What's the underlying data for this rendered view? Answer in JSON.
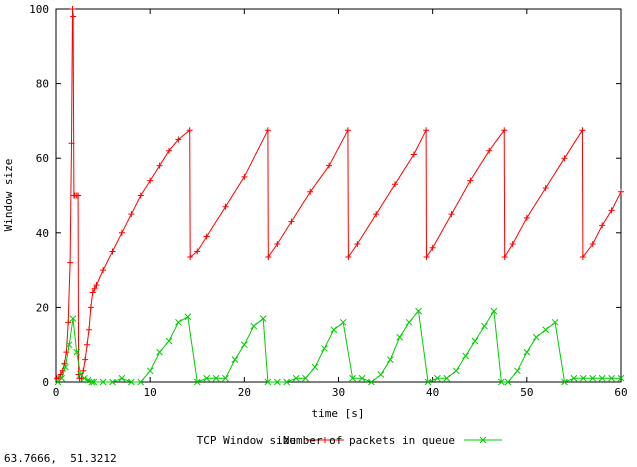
{
  "status_bar": {
    "coordinates": "63.7666,  51.3212"
  },
  "chart_data": {
    "type": "line",
    "xlabel": "time [s]",
    "ylabel": "Window size",
    "xlim": [
      0,
      60
    ],
    "ylim": [
      0,
      100
    ],
    "xticks": [
      0,
      10,
      20,
      30,
      40,
      50,
      60
    ],
    "yticks": [
      0,
      20,
      40,
      60,
      80,
      100
    ],
    "grid": false,
    "legend_position": "bottom",
    "series": [
      {
        "name": "TCP Window size",
        "color": "#ff0000",
        "marker": "plus",
        "x": [
          0.1,
          0.3,
          0.5,
          0.7,
          0.9,
          1.1,
          1.3,
          1.5,
          1.65,
          1.75,
          1.82,
          1.9,
          2.0,
          2.2,
          2.35,
          2.4,
          2.5,
          2.7,
          2.9,
          3.1,
          3.3,
          3.5,
          3.7,
          3.9,
          4.1,
          4.3,
          5.0,
          6.0,
          7.0,
          8.0,
          9.0,
          10.0,
          11.0,
          12.0,
          13.0,
          14.2,
          14.25,
          15.0,
          16.0,
          18.0,
          20.0,
          22.5,
          22.55,
          23.5,
          25.0,
          27.0,
          29.0,
          31.0,
          31.05,
          32.0,
          34.0,
          36.0,
          38.0,
          39.3,
          39.35,
          40.0,
          42.0,
          44.0,
          46.0,
          47.6,
          47.65,
          48.5,
          50.0,
          52.0,
          54.0,
          55.9,
          55.95,
          57.0,
          58.0,
          59.0,
          60.0
        ],
        "y": [
          1,
          1,
          2,
          3,
          5,
          8,
          16,
          32,
          64,
          100,
          98,
          50,
          50,
          50,
          50,
          2,
          1,
          1,
          3,
          6,
          10,
          14,
          20,
          24,
          25,
          26,
          30,
          35,
          40,
          45,
          50,
          54,
          58,
          62,
          65,
          67.5,
          33.5,
          35,
          39,
          47,
          55,
          67.5,
          33.5,
          37,
          43,
          51,
          58,
          67.5,
          33.5,
          37,
          45,
          53,
          61,
          67.5,
          33.5,
          36,
          45,
          54,
          62,
          67.5,
          33.5,
          37,
          44,
          52,
          60,
          67.5,
          33.5,
          37,
          42,
          46,
          51
        ]
      },
      {
        "name": "Number of packets in queue",
        "color": "#00cc00",
        "marker": "x",
        "x": [
          0.2,
          0.6,
          1.0,
          1.4,
          1.8,
          2.2,
          2.6,
          3.0,
          3.4,
          3.8,
          4.0,
          5.0,
          6.0,
          7.0,
          8.0,
          9.0,
          10.0,
          11.0,
          12.0,
          13.0,
          14.0,
          15.0,
          16.0,
          17.0,
          18.0,
          19.0,
          20.0,
          21.0,
          22.0,
          22.5,
          23.5,
          24.5,
          25.5,
          26.5,
          27.5,
          28.5,
          29.5,
          30.5,
          31.5,
          32.5,
          33.5,
          34.5,
          35.5,
          36.5,
          37.5,
          38.5,
          39.5,
          40.5,
          41.5,
          42.5,
          43.5,
          44.5,
          45.5,
          46.5,
          47.3,
          48.0,
          49.0,
          50.0,
          51.0,
          52.0,
          53.0,
          54.0,
          55.0,
          56.0,
          57.0,
          58.0,
          59.0,
          60.0
        ],
        "y": [
          0,
          1,
          4,
          10,
          17,
          8,
          2,
          1,
          0.5,
          0,
          0,
          0,
          0,
          1,
          0,
          0,
          3,
          8,
          11,
          16,
          17.5,
          0,
          1,
          1,
          1,
          6,
          10,
          15,
          17,
          0,
          0,
          0,
          1,
          1,
          4,
          9,
          14,
          16,
          1,
          1,
          0,
          2,
          6,
          12,
          16,
          19,
          0,
          1,
          1,
          3,
          7,
          11,
          15,
          19,
          0,
          0,
          3,
          8,
          12,
          14,
          16,
          0,
          1,
          1,
          1,
          1,
          1,
          1
        ]
      }
    ]
  }
}
